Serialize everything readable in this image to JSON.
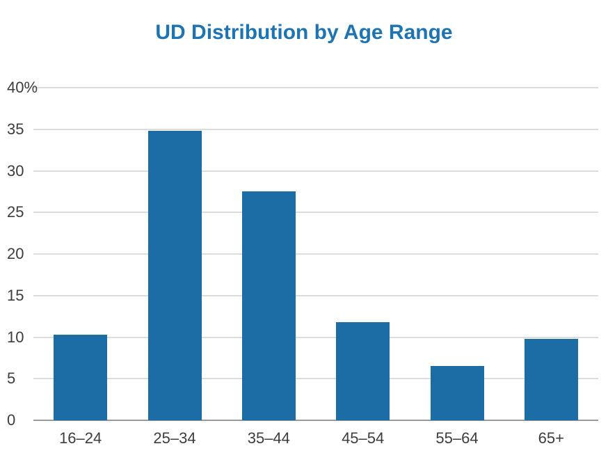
{
  "chart_data": {
    "type": "bar",
    "title": "UD Distribution by Age Range",
    "categories": [
      "16–24",
      "25–34",
      "35–44",
      "45–54",
      "55–64",
      "65+"
    ],
    "values": [
      10.3,
      34.8,
      27.5,
      11.8,
      6.5,
      9.8
    ],
    "unit": "%",
    "xlabel": "",
    "ylabel": "",
    "ylim": [
      0,
      40
    ],
    "y_ticks": [
      0,
      5,
      10,
      15,
      20,
      25,
      30,
      35,
      40
    ],
    "y_tick_labels": [
      "0",
      "5",
      "10",
      "15",
      "20",
      "25",
      "30",
      "35",
      "40%"
    ],
    "grid": "horizontal-only",
    "legend": "none"
  },
  "colors": {
    "bar": "#1c6da6",
    "title": "#1e74b2",
    "gridline": "#dcdcdc",
    "axis_line": "#999999",
    "tick_text": "#3d3d3d",
    "background": "#ffffff"
  }
}
